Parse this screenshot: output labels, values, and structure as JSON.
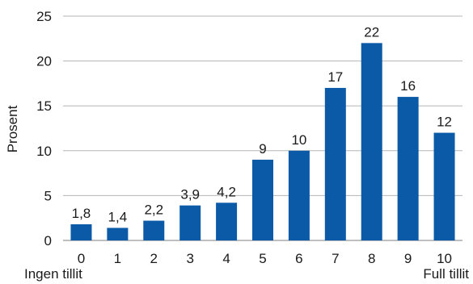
{
  "chart_data": {
    "type": "bar",
    "categories": [
      "0",
      "1",
      "2",
      "3",
      "4",
      "5",
      "6",
      "7",
      "8",
      "9",
      "10"
    ],
    "values": [
      1.8,
      1.4,
      2.2,
      3.9,
      4.2,
      9,
      10,
      17,
      22,
      16,
      12
    ],
    "data_labels": [
      "1,8",
      "1,4",
      "2,2",
      "3,9",
      "4,2",
      "9",
      "10",
      "17",
      "22",
      "16",
      "12"
    ],
    "ylabel": "Prosent",
    "ylim": [
      0,
      25
    ],
    "yticks": [
      "0",
      "5",
      "10",
      "15",
      "20",
      "25"
    ],
    "x_end_labels": {
      "left": "Ingen tillit",
      "right": "Full tillit"
    },
    "grid": true,
    "colors": {
      "bar": "#0a5aa8",
      "grid": "#b5b5b5",
      "axis": "#999999"
    }
  }
}
